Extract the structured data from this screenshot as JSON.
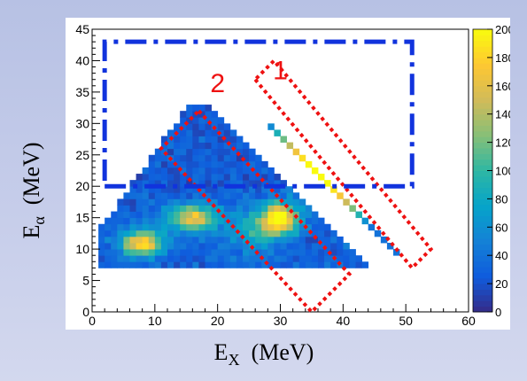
{
  "chart_data": {
    "type": "heatmap",
    "title": "",
    "xlabel": {
      "main": "E",
      "sub": "X",
      "unit": "(MeV)"
    },
    "ylabel": {
      "main": "E",
      "sub": "α",
      "unit": "(MeV)"
    },
    "xlim": [
      0,
      60
    ],
    "ylim": [
      0,
      45
    ],
    "xticks": [
      0,
      10,
      20,
      30,
      40,
      50,
      60
    ],
    "yticks": [
      0,
      5,
      10,
      15,
      20,
      25,
      30,
      35,
      40,
      45
    ],
    "colorscale": {
      "range": [
        0,
        200
      ],
      "ticks": [
        0,
        20,
        40,
        60,
        80,
        100,
        120,
        140,
        160,
        180,
        200
      ],
      "colors": [
        "#352a87",
        "#0f5cdd",
        "#1481d6",
        "#06a4ca",
        "#2eb7a4",
        "#87bf77",
        "#d1bb59",
        "#fec832",
        "#f9fb0e"
      ]
    },
    "grid": false,
    "legend": "colorbar-right",
    "blobs": [
      {
        "x": 8,
        "y": 11,
        "sx": 3.2,
        "sy": 2.0,
        "value": 160
      },
      {
        "x": 16,
        "y": 15,
        "sx": 4.0,
        "sy": 2.0,
        "value": 140
      },
      {
        "x": 30,
        "y": 15,
        "sx": 3.0,
        "sy": 2.4,
        "value": 175
      },
      {
        "x": 26,
        "y": 13,
        "sx": 4.0,
        "sy": 3.0,
        "value": 60
      }
    ],
    "diagonal_line": {
      "x_start": 28,
      "x_end": 49,
      "y_start": 30,
      "y_end": 9,
      "value": 185
    },
    "regions": [
      {
        "label": "1",
        "type": "polygon",
        "color": "#ee1111",
        "style": "dotted",
        "vertices": [
          [
            26,
            37
          ],
          [
            51,
            7
          ],
          [
            54,
            10
          ],
          [
            29,
            40
          ]
        ]
      },
      {
        "label": "2",
        "type": "polygon",
        "color": "#ee1111",
        "style": "dotted",
        "vertices": [
          [
            17,
            32
          ],
          [
            41,
            6
          ],
          [
            35,
            0
          ],
          [
            11,
            26
          ]
        ]
      },
      {
        "label": "",
        "type": "rectangle",
        "color": "#1133dd",
        "style": "dash-dot",
        "vertices": [
          [
            2,
            20
          ],
          [
            51,
            20
          ],
          [
            51,
            43
          ],
          [
            2,
            43
          ]
        ]
      }
    ],
    "region_label_positions": [
      {
        "label": "1",
        "x": 30,
        "y": 37
      },
      {
        "label": "2",
        "x": 20,
        "y": 35
      }
    ]
  }
}
